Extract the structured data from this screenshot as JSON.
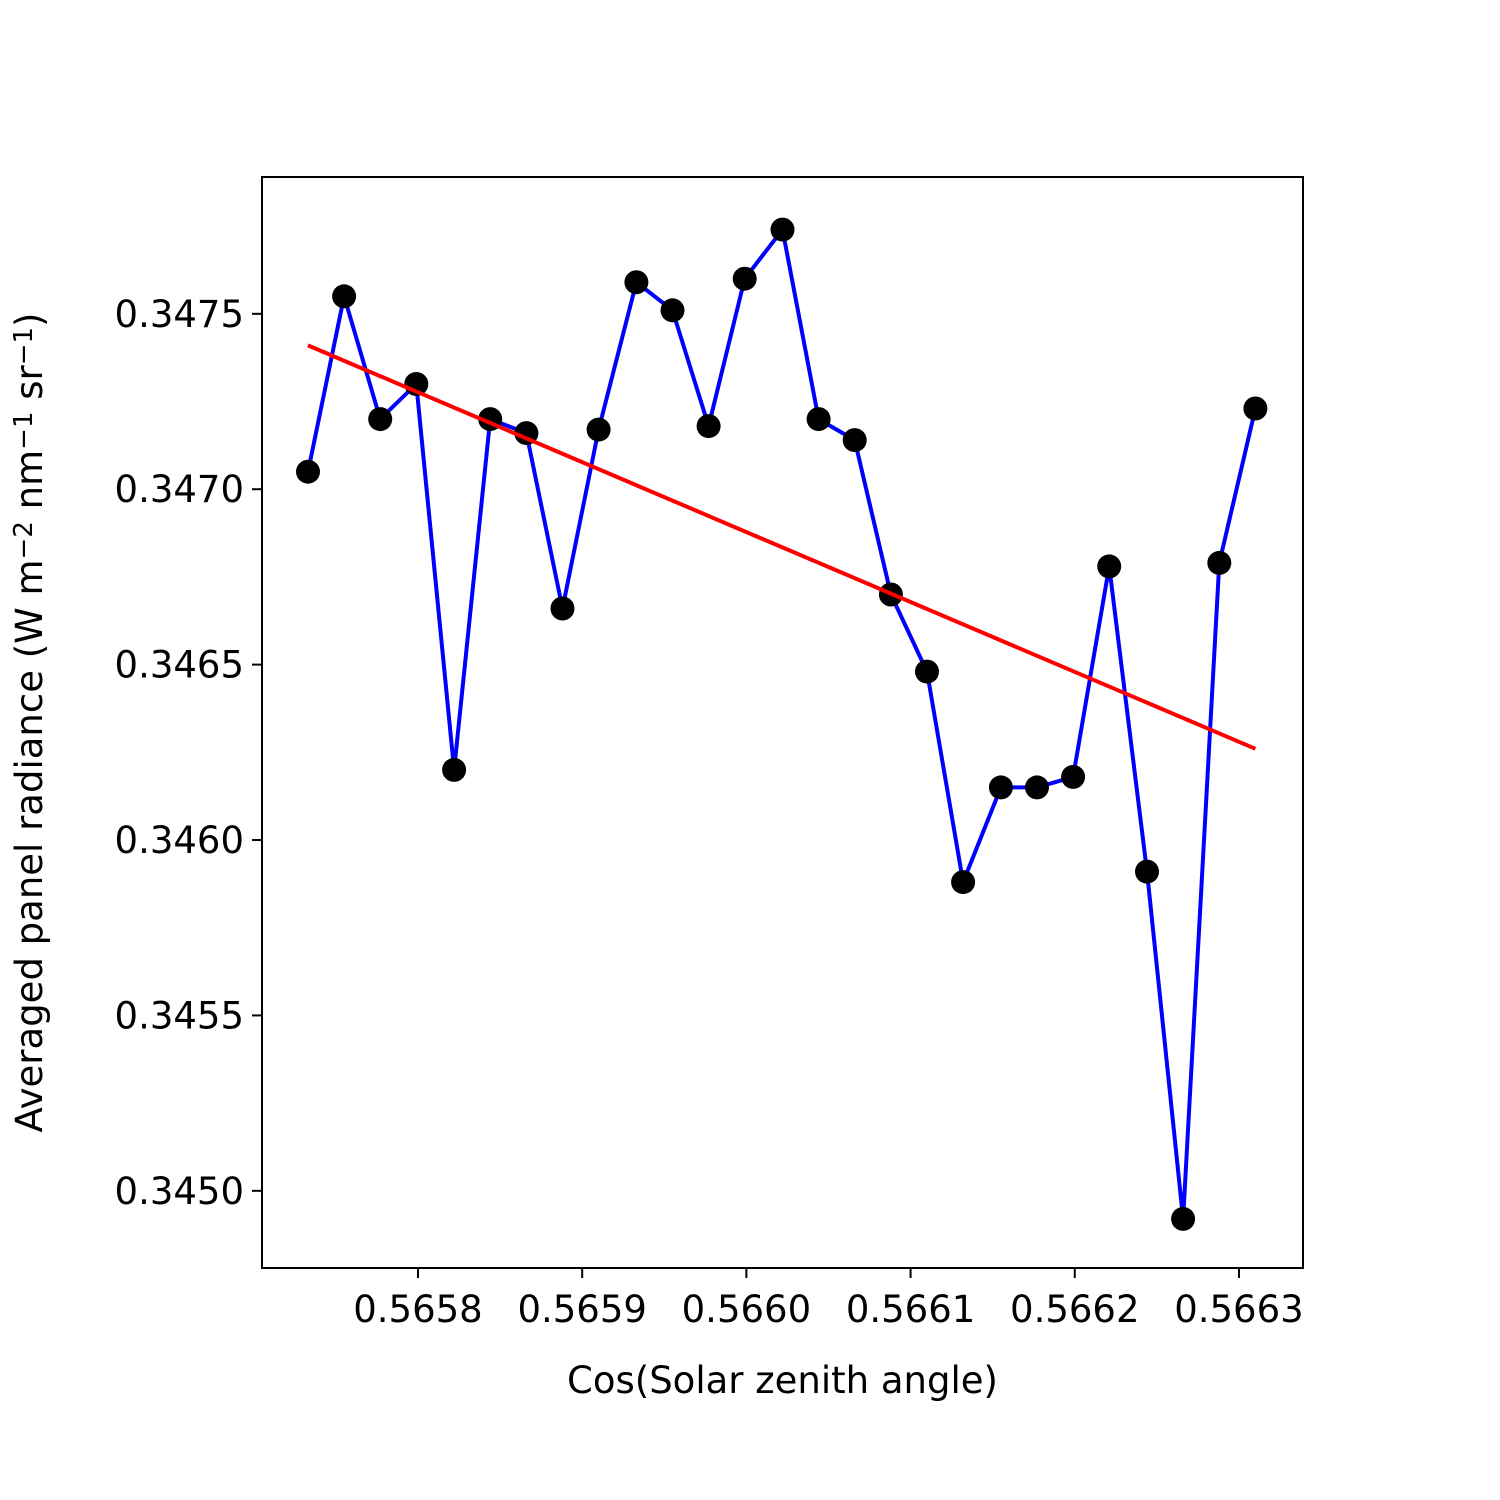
{
  "chart_data": {
    "type": "scatter",
    "title": "",
    "xlabel": "Cos(Solar zenith angle)",
    "ylabel_main": "Averaged panel radiance (W m",
    "ylabel_parts": [
      {
        "text": "Averaged panel radiance (W m",
        "sup": false
      },
      {
        "text": "−2",
        "sup": true
      },
      {
        "text": " nm",
        "sup": false
      },
      {
        "text": "−1",
        "sup": true
      },
      {
        "text": " sr",
        "sup": false
      },
      {
        "text": "−1",
        "sup": true
      },
      {
        "text": ")",
        "sup": false
      }
    ],
    "xlim": [
      0.565705,
      0.566339
    ],
    "ylim": [
      0.34478,
      0.34789
    ],
    "x_ticks": [
      0.5658,
      0.5659,
      0.566,
      0.5661,
      0.5662,
      0.5663
    ],
    "x_tick_labels": [
      "0.5658",
      "0.5659",
      "0.5660",
      "0.5661",
      "0.5662",
      "0.5663"
    ],
    "y_ticks": [
      0.345,
      0.3455,
      0.346,
      0.3465,
      0.347,
      0.3475
    ],
    "y_tick_labels": [
      "0.3450",
      "0.3455",
      "0.3460",
      "0.3465",
      "0.3470",
      "0.3475"
    ],
    "grid": false,
    "series": [
      {
        "x": [
          0.565733,
          0.565755,
          0.565777,
          0.565799,
          0.565822,
          0.565844,
          0.565866,
          0.565888,
          0.56591,
          0.565933,
          0.565955,
          0.565977,
          0.565999,
          0.566022,
          0.566044,
          0.566066,
          0.566088,
          0.56611,
          0.566132,
          0.566155,
          0.566177,
          0.566199,
          0.566221,
          0.566244,
          0.566266,
          0.566288,
          0.56631
        ],
        "y": [
          0.34705,
          0.34755,
          0.3472,
          0.3473,
          0.3462,
          0.3472,
          0.34716,
          0.34666,
          0.34717,
          0.34759,
          0.34751,
          0.34718,
          0.3476,
          0.34774,
          0.3472,
          0.34714,
          0.3467,
          0.34648,
          0.34588,
          0.34615,
          0.34615,
          0.34618,
          0.34678,
          0.34591,
          0.34492,
          0.34679,
          0.34723
        ],
        "marker_color": "#000000",
        "line_color": "#0000ff"
      }
    ],
    "fit_line": {
      "x": [
        0.565733,
        0.56631
      ],
      "y": [
        0.34741,
        0.34626
      ],
      "color": "#ff0000"
    }
  }
}
